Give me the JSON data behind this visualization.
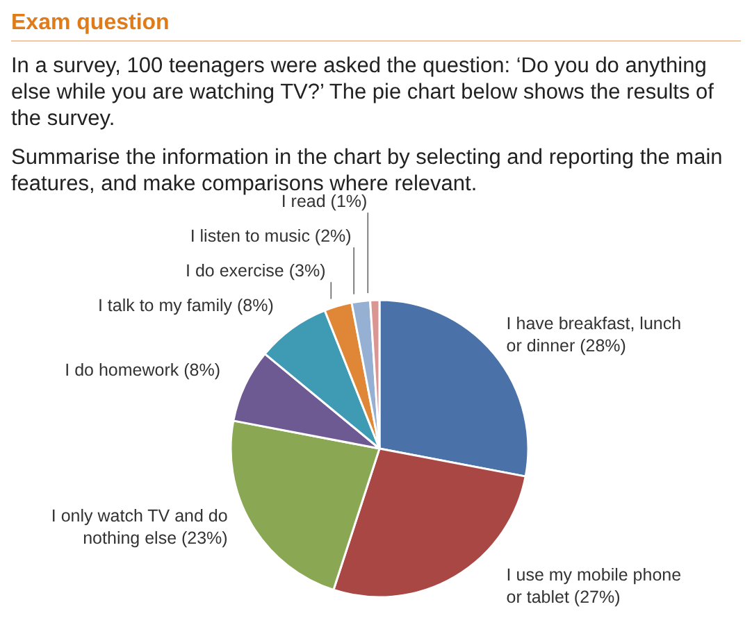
{
  "chart_data": {
    "type": "pie",
    "title": "Exam question",
    "subtitle": "In a survey, 100 teenagers were asked the question: ‘Do you do anything else while you are watching TV?’ The pie chart below shows the results of the survey.",
    "annotations": [
      "Summarise the information in the chart by selecting and reporting the main features, and make comparisons where relevant."
    ],
    "categories": [
      "I have breakfast, lunch or dinner",
      "I use my mobile phone or tablet",
      "I only watch TV and do nothing else",
      "I do homework",
      "I talk to my family",
      "I do exercise",
      "I listen to music",
      "I read"
    ],
    "values": [
      28,
      27,
      23,
      8,
      8,
      3,
      2,
      1
    ],
    "value_labels": [
      "(28%)",
      "(27%)",
      "(23%)",
      "(8%)",
      "(8%)",
      "(3%)",
      "(2%)",
      "(1%)"
    ],
    "colors": [
      "#4a72a8",
      "#a94744",
      "#8aa853",
      "#6d5a93",
      "#3f9bb4",
      "#df8637",
      "#96b0d4",
      "#d99693"
    ],
    "legend": false
  }
}
